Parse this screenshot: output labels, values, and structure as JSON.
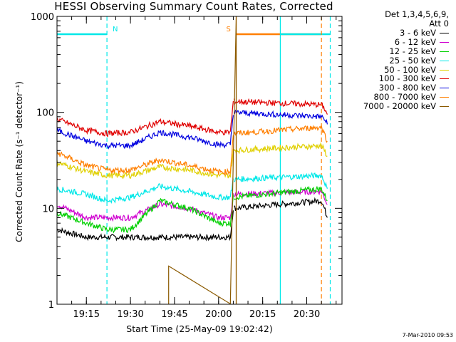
{
  "chart_data": {
    "type": "line",
    "title": "HESSI Observing Summary Count Rates, Corrected",
    "ylabel": "Corrected Count Rate (s⁻¹ detector⁻¹)",
    "xlabel": "Start Time (25-May-09 19:02:42)",
    "yscale": "log",
    "ylim": [
      1,
      1000
    ],
    "y_ticks": [
      "1",
      "10",
      "100",
      "1000"
    ],
    "xlim": [
      "19:05",
      "20:42"
    ],
    "x_ticks": [
      "19:15",
      "19:30",
      "19:45",
      "20:00",
      "20:15",
      "20:30"
    ],
    "legend_header": [
      "Det 1,3,4,5,6,9,",
      "Att 0"
    ],
    "legend_position": "right",
    "series": [
      {
        "name": "3 - 6 keV",
        "color": "#000000",
        "x": [
          "19:05",
          "19:15",
          "19:22",
          "19:30",
          "19:40",
          "19:50",
          "20:00",
          "20:04",
          "20:05",
          "20:35",
          "20:36",
          "20:37"
        ],
        "y": [
          6,
          5,
          5,
          5,
          5,
          5,
          5,
          5,
          10,
          12,
          10,
          8
        ]
      },
      {
        "name": "6 - 12 keV",
        "color": "#d000d0",
        "x": [
          "19:05",
          "19:15",
          "19:22",
          "19:30",
          "19:40",
          "19:50",
          "20:00",
          "20:04",
          "20:05",
          "20:35",
          "20:36",
          "20:37"
        ],
        "y": [
          11,
          8,
          8,
          8,
          11,
          10,
          8,
          8,
          14,
          15,
          13,
          11
        ]
      },
      {
        "name": "12 - 25 keV",
        "color": "#00d000",
        "x": [
          "19:05",
          "19:15",
          "19:22",
          "19:30",
          "19:40",
          "19:50",
          "20:00",
          "20:04",
          "20:05",
          "20:35",
          "20:36",
          "20:37"
        ],
        "y": [
          9,
          7,
          6,
          6,
          12,
          10,
          7,
          7,
          13,
          16,
          14,
          12
        ]
      },
      {
        "name": "25 - 50 keV",
        "color": "#00e8e8",
        "x": [
          "19:05",
          "19:15",
          "19:22",
          "19:30",
          "19:40",
          "19:50",
          "20:00",
          "20:04",
          "20:05",
          "20:35",
          "20:36",
          "20:37"
        ],
        "y": [
          16,
          14,
          12,
          13,
          17,
          15,
          13,
          13,
          20,
          22,
          19,
          16
        ]
      },
      {
        "name": "50 - 100 keV",
        "color": "#e0d000",
        "x": [
          "19:05",
          "19:15",
          "19:22",
          "19:30",
          "19:40",
          "19:50",
          "20:00",
          "20:04",
          "20:05",
          "20:35",
          "20:36",
          "20:37"
        ],
        "y": [
          30,
          24,
          22,
          22,
          27,
          25,
          22,
          22,
          40,
          45,
          40,
          35
        ]
      },
      {
        "name": "100 - 300 keV",
        "color": "#e00000",
        "x": [
          "19:05",
          "19:15",
          "19:22",
          "19:30",
          "19:40",
          "19:50",
          "20:00",
          "20:04",
          "20:05",
          "20:35",
          "20:36",
          "20:37"
        ],
        "y": [
          85,
          65,
          60,
          62,
          80,
          72,
          62,
          62,
          130,
          120,
          110,
          95
        ]
      },
      {
        "name": "300 - 800 keV",
        "color": "#0000e0",
        "x": [
          "19:05",
          "19:15",
          "19:22",
          "19:30",
          "19:40",
          "19:50",
          "20:00",
          "20:04",
          "20:05",
          "20:35",
          "20:36",
          "20:37"
        ],
        "y": [
          65,
          50,
          45,
          45,
          62,
          55,
          46,
          46,
          100,
          90,
          85,
          75
        ]
      },
      {
        "name": "800 - 7000 keV",
        "color": "#ff7f00",
        "x": [
          "19:05",
          "19:15",
          "19:22",
          "19:30",
          "19:40",
          "19:50",
          "20:00",
          "20:04",
          "20:05",
          "20:35",
          "20:36",
          "20:37"
        ],
        "y": [
          38,
          28,
          25,
          25,
          32,
          28,
          24,
          24,
          60,
          70,
          60,
          50
        ]
      },
      {
        "name": "7000 - 20000 keV",
        "color": "#8b5a00",
        "x": [
          "19:43",
          "19:43",
          "20:04",
          "20:06",
          "20:06"
        ],
        "y": [
          1,
          2.5,
          1,
          1000,
          1
        ]
      }
    ],
    "flags": [
      {
        "label": "N",
        "color": "#00e8e8",
        "x_start": "19:05",
        "x_end": "19:22"
      },
      {
        "label": "S",
        "color": "#ff7f00",
        "x_start": "20:06",
        "x_end": "20:35"
      },
      {
        "label": "",
        "color": "#00e8e8",
        "x_start": "20:21",
        "x_end": "20:38"
      }
    ],
    "vertical_lines": [
      {
        "x": "19:22",
        "color": "#00e8e8",
        "style": "dashed"
      },
      {
        "x": "20:06",
        "color": "#ff7f00",
        "style": "solid"
      },
      {
        "x": "20:21",
        "color": "#00e8e8",
        "style": "solid"
      },
      {
        "x": "20:35",
        "color": "#ff7f00",
        "style": "dashed"
      },
      {
        "x": "20:38",
        "color": "#00e8e8",
        "style": "dashed"
      }
    ]
  },
  "footer": {
    "timestamp": "7-Mar-2010 09:53"
  }
}
